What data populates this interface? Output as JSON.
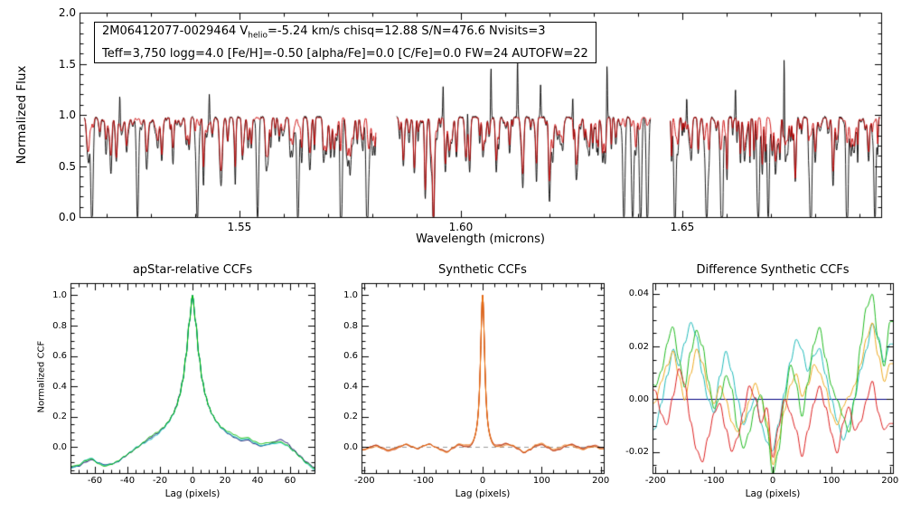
{
  "annotation": {
    "l1a": "2M06412077-0029464  V",
    "l1sub": "helio",
    "l1b": "=-5.24 km/s  chisq=12.88  S/N=476.6  Nvisits=3",
    "line2": "Teff=3,750 logg=4.0 [Fe/H]=-0.50 [alpha/Fe]=0.0 [C/Fe]=0.0 FW=24 AUTOFW=22"
  },
  "chart_data": [
    {
      "type": "line",
      "title": "",
      "xlabel": "Wavelength (microns)",
      "ylabel": "Normalized Flux",
      "xlim": [
        1.5139,
        1.6949
      ],
      "ylim": [
        0.0,
        2.0
      ],
      "xticks": {
        "values": [
          1.55,
          1.6,
          1.65
        ],
        "labels": [
          "1.55",
          "1.60",
          "1.65"
        ]
      },
      "yticks": {
        "values": [
          0.0,
          0.5,
          1.0,
          1.5,
          2.0
        ],
        "labels": [
          "0.0",
          "0.5",
          "1.0",
          "1.5",
          "2.0"
        ]
      },
      "series": [
        {
          "role": "observed-spectrum",
          "color": "#000000"
        },
        {
          "role": "best-fit-model",
          "color": "#cc0000"
        }
      ],
      "continuum": 0.978,
      "chips": [
        [
          1.515,
          1.5808
        ],
        [
          1.5855,
          1.6428
        ],
        [
          1.6473,
          1.6945
        ]
      ],
      "absorption_lines": [
        [
          1.516,
          0.7,
          0.78
        ],
        [
          1.5185,
          0.8,
          0.85
        ],
        [
          1.521,
          0.62,
          0.74
        ],
        [
          1.5245,
          0.78,
          0.82
        ],
        [
          1.529,
          0.58,
          0.72
        ],
        [
          1.5315,
          0.8,
          0.85
        ],
        [
          1.535,
          0.52,
          0.68
        ],
        [
          1.538,
          0.75,
          0.8
        ],
        [
          1.542,
          0.66,
          0.75
        ],
        [
          1.5455,
          0.8,
          0.84
        ],
        [
          1.549,
          0.6,
          0.72
        ],
        [
          1.552,
          0.77,
          0.82
        ],
        [
          1.556,
          0.55,
          0.68
        ],
        [
          1.559,
          0.74,
          0.8
        ],
        [
          1.562,
          0.64,
          0.74
        ],
        [
          1.566,
          0.79,
          0.83
        ],
        [
          1.569,
          0.58,
          0.7
        ],
        [
          1.572,
          0.76,
          0.81
        ],
        [
          1.575,
          0.67,
          0.76
        ],
        [
          1.5775,
          0.81,
          0.85
        ],
        [
          1.587,
          0.52,
          0.58
        ],
        [
          1.5895,
          0.42,
          0.48
        ],
        [
          1.592,
          0.33,
          0.38
        ],
        [
          1.5938,
          0.22,
          0.26
        ],
        [
          1.5965,
          0.48,
          0.54
        ],
        [
          1.599,
          0.58,
          0.64
        ],
        [
          1.602,
          0.52,
          0.62
        ],
        [
          1.605,
          0.68,
          0.74
        ],
        [
          1.608,
          0.48,
          0.58
        ],
        [
          1.611,
          0.63,
          0.71
        ],
        [
          1.614,
          0.53,
          0.63
        ],
        [
          1.617,
          0.68,
          0.75
        ],
        [
          1.62,
          0.58,
          0.66
        ],
        [
          1.623,
          0.7,
          0.77
        ],
        [
          1.626,
          0.53,
          0.63
        ],
        [
          1.629,
          0.66,
          0.73
        ],
        [
          1.632,
          0.56,
          0.65
        ],
        [
          1.635,
          0.71,
          0.78
        ],
        [
          1.6395,
          0.61,
          0.69
        ],
        [
          1.649,
          0.64,
          0.73
        ],
        [
          1.652,
          0.73,
          0.79
        ],
        [
          1.656,
          0.56,
          0.66
        ],
        [
          1.66,
          0.7,
          0.77
        ],
        [
          1.664,
          0.6,
          0.69
        ],
        [
          1.668,
          0.72,
          0.79
        ],
        [
          1.671,
          0.53,
          0.63
        ],
        [
          1.6755,
          0.44,
          0.46
        ],
        [
          1.68,
          0.66,
          0.74
        ],
        [
          1.684,
          0.56,
          0.66
        ],
        [
          1.688,
          0.7,
          0.77
        ],
        [
          1.692,
          0.61,
          0.7
        ]
      ],
      "deep_masked_lines": [
        1.5167,
        1.527,
        1.5405,
        1.5541,
        1.5632,
        1.573,
        1.5788,
        1.6368,
        1.6388,
        1.6406,
        1.6421,
        1.6483,
        1.6555,
        1.659,
        1.6672,
        1.6694,
        1.679,
        1.6872,
        1.6935
      ],
      "emission_spikes": [
        [
          1.523,
          1.28
        ],
        [
          1.5432,
          1.28
        ],
        [
          1.596,
          1.3
        ],
        [
          1.6015,
          1.22
        ],
        [
          1.6068,
          1.5
        ],
        [
          1.6128,
          1.52
        ],
        [
          1.618,
          1.3
        ],
        [
          1.6253,
          1.28
        ],
        [
          1.633,
          1.55
        ],
        [
          1.651,
          1.3
        ],
        [
          1.662,
          1.25
        ],
        [
          1.673,
          1.87
        ]
      ]
    },
    {
      "type": "line",
      "title": "apStar-relative CCFs",
      "xlabel": "Lag (pixels)",
      "ylabel": "Normalized CCF",
      "xlim": [
        -75,
        75
      ],
      "ylim": [
        -0.17,
        1.08
      ],
      "xticks": {
        "values": [
          -60,
          -40,
          -20,
          0,
          20,
          40,
          60
        ],
        "labels": [
          "-60",
          "-40",
          "-20",
          "0",
          "20",
          "40",
          "60"
        ]
      },
      "yticks": {
        "values": [
          0.0,
          0.2,
          0.4,
          0.6,
          0.8,
          1.0
        ],
        "labels": [
          "0.0",
          "0.2",
          "0.4",
          "0.6",
          "0.8",
          "1.0"
        ]
      },
      "x": [
        -75,
        -70,
        -66,
        -62,
        -58,
        -54,
        -50,
        -46,
        -42,
        -38,
        -34,
        -30,
        -26,
        -22,
        -18,
        -15,
        -12,
        -10,
        -8,
        -6,
        -4,
        -2,
        0,
        2,
        4,
        6,
        8,
        10,
        12,
        15,
        18,
        22,
        26,
        30,
        34,
        38,
        42,
        46,
        50,
        54,
        58,
        62,
        66,
        70,
        75
      ],
      "base": [
        -0.13,
        -0.12,
        -0.09,
        -0.075,
        -0.1,
        -0.115,
        -0.105,
        -0.085,
        -0.055,
        -0.03,
        0.0,
        0.03,
        0.06,
        0.09,
        0.13,
        0.17,
        0.22,
        0.27,
        0.34,
        0.44,
        0.6,
        0.82,
        1.0,
        0.82,
        0.6,
        0.44,
        0.34,
        0.27,
        0.22,
        0.17,
        0.13,
        0.095,
        0.07,
        0.05,
        0.055,
        0.03,
        0.012,
        0.02,
        0.03,
        0.04,
        0.02,
        -0.02,
        -0.06,
        -0.1,
        -0.135
      ],
      "jitter": 0.012,
      "series": [
        {
          "color": "#000066"
        },
        {
          "color": "#00bbbb"
        },
        {
          "color": "#00bb00"
        }
      ]
    },
    {
      "type": "line",
      "title": "Synthetic CCFs",
      "xlabel": "Lag (pixels)",
      "ylabel": "",
      "xlim": [
        -205,
        205
      ],
      "ylim": [
        -0.17,
        1.08
      ],
      "xticks": {
        "values": [
          -200,
          -100,
          0,
          100,
          200
        ],
        "labels": [
          "-200",
          "-100",
          "0",
          "100",
          "200"
        ]
      },
      "yticks": {
        "values": [
          0.0,
          0.2,
          0.4,
          0.6,
          0.8,
          1.0
        ],
        "labels": [
          "0.0",
          "0.2",
          "0.4",
          "0.6",
          "0.8",
          "1.0"
        ]
      },
      "zero_line": {
        "style": "dashed",
        "color": "#999999"
      },
      "peak": {
        "center": 0,
        "height": 1.0,
        "hwhm": 5
      },
      "noise_x_start": -200,
      "noise_x_step": 10,
      "noise_y": [
        -0.01,
        0.0,
        0.01,
        -0.005,
        -0.02,
        -0.01,
        0.005,
        0.015,
        0.0,
        -0.01,
        0.01,
        0.02,
        0.0,
        -0.015,
        -0.03,
        -0.01,
        0.01,
        0.0,
        -0.01,
        0.005,
        0.0,
        0.005,
        -0.01,
        0.0,
        0.015,
        0.005,
        -0.015,
        -0.04,
        -0.02,
        0.01,
        0.02,
        0.0,
        -0.02,
        -0.01,
        0.01,
        0.015,
        0.0,
        -0.01,
        0.005,
        0.01,
        -0.005
      ],
      "jitter": 0.008,
      "series": [
        {
          "color": "#992200"
        },
        {
          "color": "#cc3300"
        },
        {
          "color": "#ee7711"
        }
      ]
    },
    {
      "type": "line",
      "title": "Difference Synthetic CCFs",
      "xlabel": "Lag (pixels)",
      "ylabel": "",
      "xlim": [
        -205,
        205
      ],
      "ylim": [
        -0.028,
        0.044
      ],
      "xticks": {
        "values": [
          -200,
          -100,
          0,
          100,
          200
        ],
        "labels": [
          "-200",
          "-100",
          "0",
          "100",
          "200"
        ]
      },
      "yticks": {
        "values": [
          -0.02,
          0.0,
          0.02,
          0.04
        ],
        "labels": [
          "-0.02",
          "0.00",
          "0.02",
          "0.04"
        ]
      },
      "zero_line": {
        "style": "solid",
        "color": "#000080"
      },
      "x_start": -200,
      "x_step": 10,
      "series": [
        {
          "color": "#22bbbb",
          "values": [
            -0.01,
            -0.002,
            0.01,
            0.02,
            0.012,
            0.022,
            0.03,
            0.024,
            0.01,
            0.0,
            -0.006,
            0.01,
            0.02,
            0.012,
            0.0,
            -0.01,
            -0.004,
            0.0,
            -0.01,
            -0.016,
            -0.02,
            -0.01,
            0.002,
            0.015,
            0.024,
            0.02,
            0.01,
            0.016,
            0.02,
            0.01,
            0.0,
            -0.01,
            -0.016,
            -0.01,
            0.0,
            0.012,
            0.02,
            0.03,
            0.024,
            0.014,
            0.02
          ]
        },
        {
          "color": "#eeaa22",
          "values": [
            0.0,
            0.006,
            0.014,
            0.02,
            0.01,
            0.0,
            0.01,
            0.02,
            0.014,
            0.004,
            0.0,
            0.006,
            0.0,
            -0.01,
            -0.014,
            -0.01,
            0.0,
            0.006,
            0.0,
            -0.01,
            -0.024,
            -0.014,
            -0.004,
            0.006,
            0.01,
            0.0,
            0.006,
            0.014,
            0.01,
            0.004,
            -0.006,
            -0.01,
            -0.004,
            0.0,
            0.006,
            0.014,
            0.024,
            0.03,
            0.016,
            0.006,
            0.014
          ]
        },
        {
          "color": "#22bb22",
          "values": [
            0.005,
            0.012,
            0.02,
            0.026,
            0.015,
            0.004,
            0.018,
            0.028,
            0.02,
            0.006,
            -0.004,
            0.001,
            0.01,
            0.004,
            -0.012,
            -0.02,
            -0.014,
            -0.004,
            0.001,
            -0.01,
            -0.027,
            -0.018,
            0.001,
            0.012,
            0.005,
            -0.006,
            0.006,
            0.02,
            0.026,
            0.014,
            0.004,
            0.0,
            -0.006,
            -0.012,
            0.001,
            0.02,
            0.034,
            0.04,
            0.022,
            0.012,
            0.03
          ]
        },
        {
          "color": "#dd2222",
          "values": [
            0.004,
            -0.004,
            -0.01,
            0.0,
            0.01,
            0.004,
            -0.01,
            -0.02,
            -0.024,
            -0.014,
            -0.004,
            0.0,
            -0.01,
            -0.02,
            -0.014,
            -0.004,
            0.006,
            0.0,
            -0.01,
            -0.004,
            -0.022,
            -0.01,
            0.0,
            -0.004,
            -0.01,
            -0.02,
            -0.01,
            0.0,
            0.006,
            -0.004,
            -0.014,
            -0.02,
            -0.01,
            -0.004,
            -0.012,
            -0.008,
            0.0,
            0.006,
            -0.004,
            -0.01,
            -0.008
          ]
        }
      ]
    }
  ]
}
